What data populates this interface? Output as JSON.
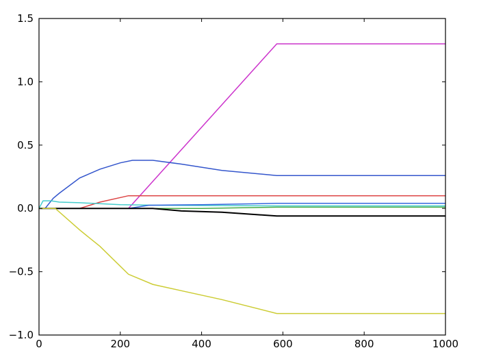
{
  "chart_data": {
    "type": "line",
    "title": "",
    "xlabel": "",
    "ylabel": "",
    "xlim": [
      0,
      1000
    ],
    "ylim": [
      -1.0,
      1.5
    ],
    "grid": false,
    "x_ticks": [
      0,
      200,
      400,
      600,
      800,
      1000
    ],
    "x_tick_labels": [
      "0",
      "200",
      "400",
      "600",
      "800",
      "1000"
    ],
    "y_ticks": [
      -1.0,
      -0.5,
      0.0,
      0.5,
      1.0,
      1.5
    ],
    "y_tick_labels": [
      "−1.0",
      "−0.5",
      "0.0",
      "0.5",
      "1.0",
      "1.5"
    ],
    "series": [
      {
        "color": "#cc33cc",
        "points": [
          [
            0,
            0
          ],
          [
            220,
            0
          ],
          [
            585,
            1.3
          ],
          [
            1000,
            1.3
          ]
        ]
      },
      {
        "color": "#3355cc",
        "points": [
          [
            0,
            0
          ],
          [
            15,
            0
          ],
          [
            35,
            0.08
          ],
          [
            50,
            0.12
          ],
          [
            100,
            0.24
          ],
          [
            150,
            0.31
          ],
          [
            200,
            0.36
          ],
          [
            230,
            0.38
          ],
          [
            280,
            0.38
          ],
          [
            350,
            0.35
          ],
          [
            450,
            0.3
          ],
          [
            585,
            0.26
          ],
          [
            1000,
            0.26
          ]
        ]
      },
      {
        "color": "#dd4444",
        "points": [
          [
            0,
            0
          ],
          [
            100,
            0
          ],
          [
            150,
            0.05
          ],
          [
            220,
            0.1
          ],
          [
            1000,
            0.1
          ]
        ]
      },
      {
        "color": "#44cccc",
        "points": [
          [
            0,
            0
          ],
          [
            10,
            0.06
          ],
          [
            30,
            0.06
          ],
          [
            50,
            0.05
          ],
          [
            100,
            0.045
          ],
          [
            200,
            0.03
          ],
          [
            300,
            0.025
          ],
          [
            585,
            0.02
          ],
          [
            1000,
            0.02
          ]
        ]
      },
      {
        "color": "#3366dd",
        "points": [
          [
            0,
            0
          ],
          [
            220,
            0
          ],
          [
            270,
            0.025
          ],
          [
            400,
            0.03
          ],
          [
            585,
            0.04
          ],
          [
            1000,
            0.04
          ]
        ]
      },
      {
        "color": "#44aa44",
        "points": [
          [
            0,
            0
          ],
          [
            300,
            0
          ],
          [
            400,
            0
          ],
          [
            585,
            0.01
          ],
          [
            1000,
            0.01
          ]
        ]
      },
      {
        "color": "#000000",
        "points": [
          [
            0,
            0
          ],
          [
            280,
            0
          ],
          [
            350,
            -0.02
          ],
          [
            450,
            -0.03
          ],
          [
            585,
            -0.06
          ],
          [
            1000,
            -0.06
          ]
        ]
      },
      {
        "color": "#cccc33",
        "points": [
          [
            0,
            0
          ],
          [
            40,
            0
          ],
          [
            100,
            -0.17
          ],
          [
            150,
            -0.3
          ],
          [
            220,
            -0.52
          ],
          [
            280,
            -0.6
          ],
          [
            350,
            -0.65
          ],
          [
            450,
            -0.72
          ],
          [
            585,
            -0.83
          ],
          [
            1000,
            -0.83
          ]
        ]
      }
    ]
  }
}
